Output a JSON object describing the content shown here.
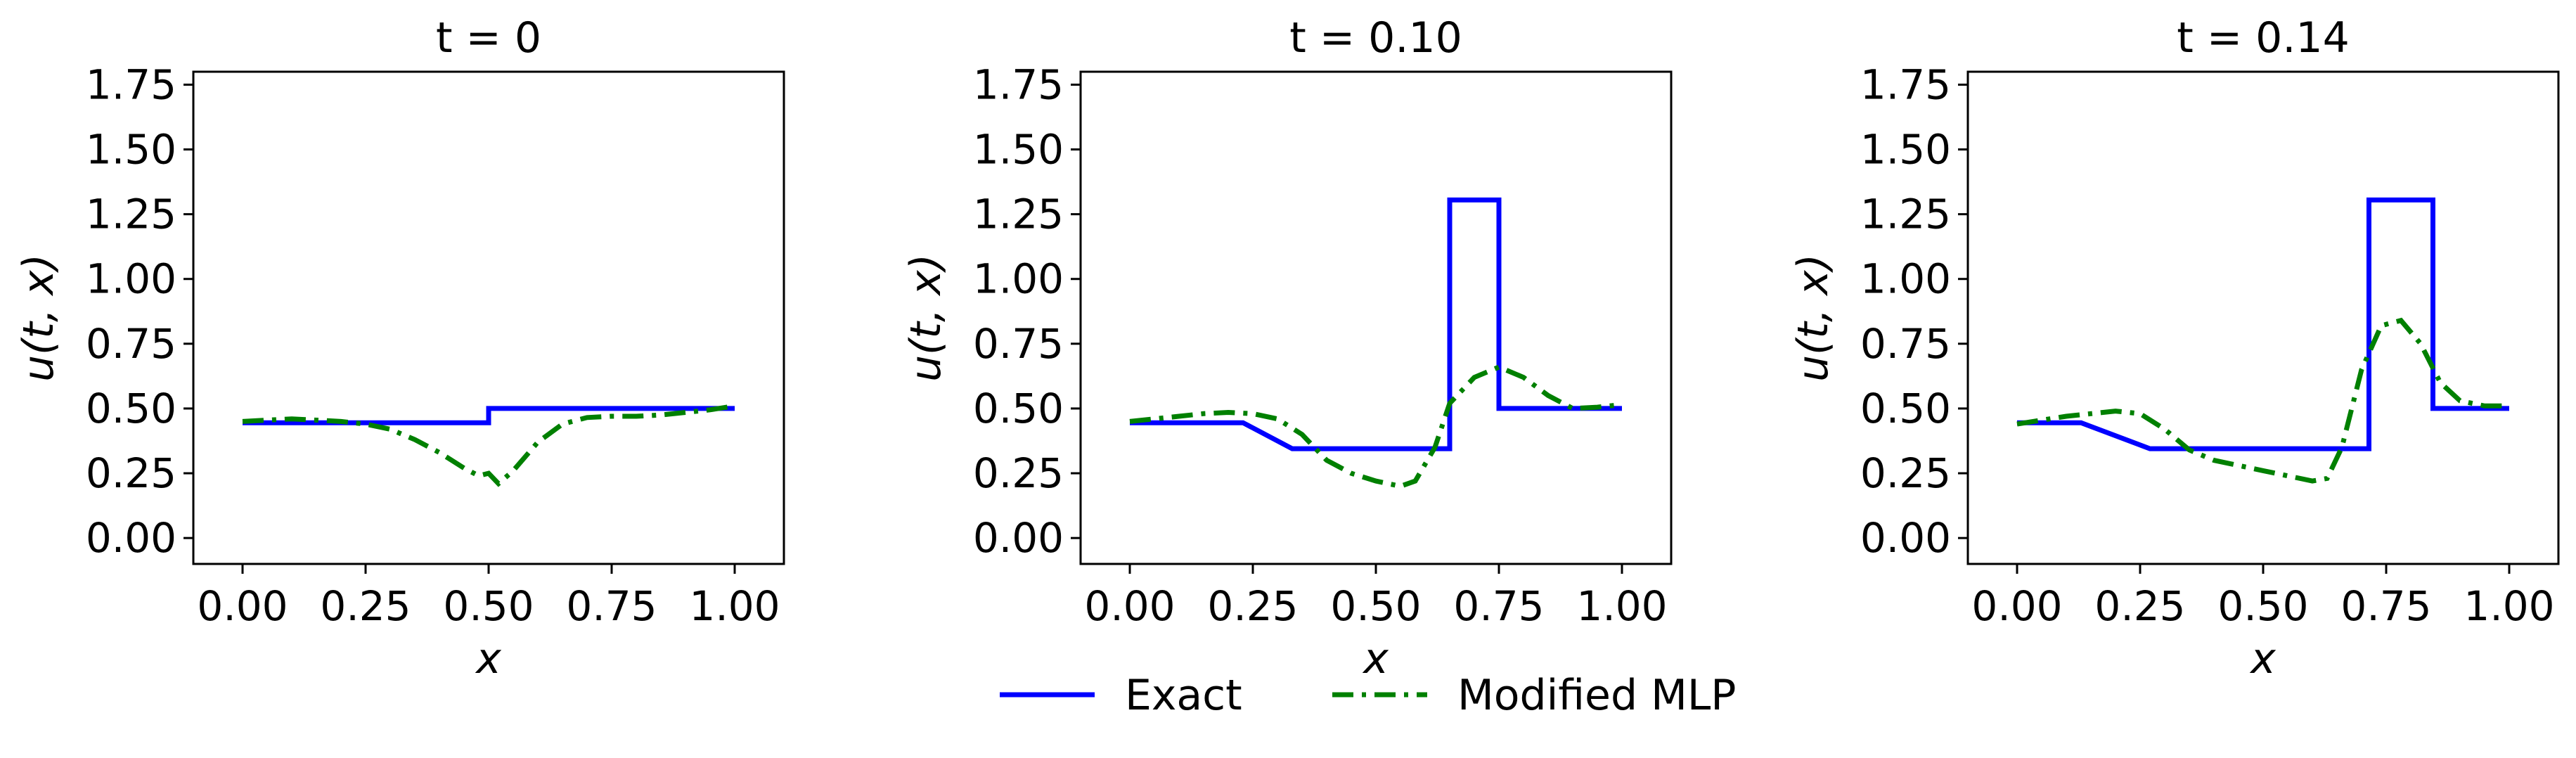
{
  "legend": {
    "placement": "bottom-center",
    "entries": [
      {
        "label": "Exact",
        "color": "#0000ff",
        "style": "solid"
      },
      {
        "label": "Modified MLP",
        "color": "#008000",
        "style": "dashdot"
      }
    ]
  },
  "chart_data": [
    {
      "type": "line",
      "title": "t = 0",
      "xlabel": "x",
      "ylabel": "u(t, x)",
      "xlim": [
        -0.1,
        1.1
      ],
      "ylim": [
        -0.1,
        1.8
      ],
      "xticks": [
        "0.00",
        "0.25",
        "0.50",
        "0.75",
        "1.00"
      ],
      "yticks": [
        "0.00",
        "0.25",
        "0.50",
        "0.75",
        "1.00",
        "1.25",
        "1.50",
        "1.75"
      ],
      "grid": false,
      "series": [
        {
          "name": "Exact",
          "color": "#0000ff",
          "style": "solid",
          "x": [
            0,
            0.5,
            0.5,
            1.0
          ],
          "y": [
            0.445,
            0.445,
            0.5,
            0.5
          ]
        },
        {
          "name": "Modified MLP",
          "color": "#008000",
          "style": "dashdot",
          "x": [
            0,
            0.05,
            0.1,
            0.15,
            0.2,
            0.25,
            0.3,
            0.35,
            0.4,
            0.45,
            0.48,
            0.5,
            0.52,
            0.55,
            0.6,
            0.65,
            0.7,
            0.75,
            0.8,
            0.85,
            0.9,
            0.95,
            1.0
          ],
          "y": [
            0.45,
            0.455,
            0.46,
            0.455,
            0.45,
            0.44,
            0.42,
            0.38,
            0.33,
            0.27,
            0.24,
            0.25,
            0.21,
            0.26,
            0.37,
            0.44,
            0.465,
            0.47,
            0.47,
            0.475,
            0.485,
            0.495,
            0.51
          ]
        }
      ]
    },
    {
      "type": "line",
      "title": "t = 0.10",
      "xlabel": "x",
      "ylabel": "u(t, x)",
      "xlim": [
        -0.1,
        1.1
      ],
      "ylim": [
        -0.1,
        1.8
      ],
      "xticks": [
        "0.00",
        "0.25",
        "0.50",
        "0.75",
        "1.00"
      ],
      "yticks": [
        "0.00",
        "0.25",
        "0.50",
        "0.75",
        "1.00",
        "1.25",
        "1.50",
        "1.75"
      ],
      "grid": false,
      "series": [
        {
          "name": "Exact",
          "color": "#0000ff",
          "style": "solid",
          "x": [
            0,
            0.23,
            0.33,
            0.65,
            0.65,
            0.75,
            0.75,
            1.0
          ],
          "y": [
            0.445,
            0.445,
            0.345,
            0.345,
            1.305,
            1.305,
            0.5,
            0.5
          ]
        },
        {
          "name": "Modified MLP",
          "color": "#008000",
          "style": "dashdot",
          "x": [
            0,
            0.05,
            0.1,
            0.15,
            0.2,
            0.25,
            0.3,
            0.35,
            0.4,
            0.45,
            0.5,
            0.55,
            0.58,
            0.62,
            0.65,
            0.7,
            0.75,
            0.8,
            0.85,
            0.9,
            0.95,
            1.0
          ],
          "y": [
            0.45,
            0.46,
            0.47,
            0.48,
            0.485,
            0.48,
            0.46,
            0.4,
            0.3,
            0.25,
            0.22,
            0.2,
            0.22,
            0.35,
            0.52,
            0.62,
            0.66,
            0.62,
            0.55,
            0.5,
            0.505,
            0.515
          ]
        }
      ]
    },
    {
      "type": "line",
      "title": "t = 0.14",
      "xlabel": "x",
      "ylabel": "u(t, x)",
      "xlim": [
        -0.1,
        1.1
      ],
      "ylim": [
        -0.1,
        1.8
      ],
      "xticks": [
        "0.00",
        "0.25",
        "0.50",
        "0.75",
        "1.00"
      ],
      "yticks": [
        "0.00",
        "0.25",
        "0.50",
        "0.75",
        "1.00",
        "1.25",
        "1.50",
        "1.75"
      ],
      "grid": false,
      "series": [
        {
          "name": "Exact",
          "color": "#0000ff",
          "style": "solid",
          "x": [
            0,
            0.13,
            0.27,
            0.715,
            0.715,
            0.845,
            0.845,
            1.0
          ],
          "y": [
            0.445,
            0.445,
            0.345,
            0.345,
            1.305,
            1.305,
            0.5,
            0.5
          ]
        },
        {
          "name": "Modified MLP",
          "color": "#008000",
          "style": "dashdot",
          "x": [
            0,
            0.05,
            0.1,
            0.15,
            0.2,
            0.25,
            0.3,
            0.35,
            0.4,
            0.45,
            0.5,
            0.55,
            0.6,
            0.63,
            0.66,
            0.7,
            0.74,
            0.78,
            0.82,
            0.86,
            0.9,
            0.95,
            1.0
          ],
          "y": [
            0.44,
            0.455,
            0.47,
            0.48,
            0.49,
            0.48,
            0.42,
            0.34,
            0.3,
            0.28,
            0.26,
            0.24,
            0.22,
            0.23,
            0.35,
            0.65,
            0.82,
            0.84,
            0.75,
            0.6,
            0.53,
            0.51,
            0.51
          ]
        }
      ]
    }
  ]
}
